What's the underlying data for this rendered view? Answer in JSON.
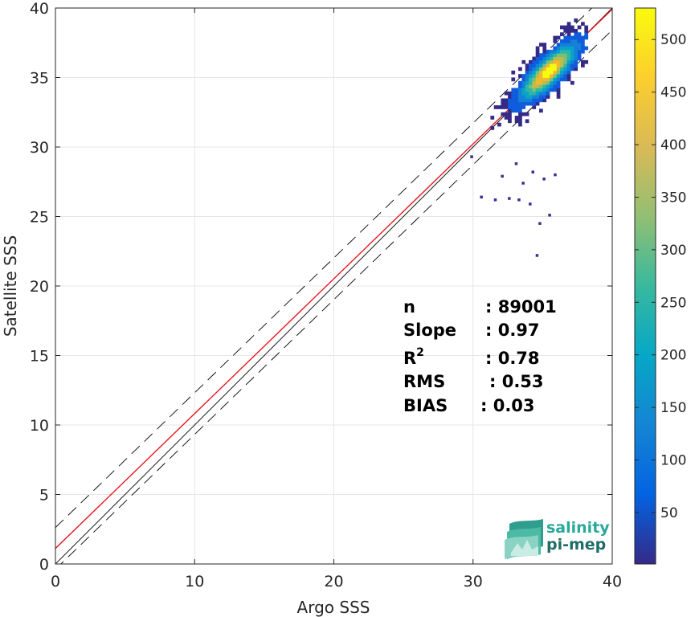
{
  "chart_data": {
    "type": "heatmap",
    "title": "",
    "xlabel": "Argo SSS",
    "ylabel": "Satellite SSS",
    "xlim": [
      0,
      40
    ],
    "ylim": [
      0,
      40
    ],
    "xticks": [
      0,
      10,
      20,
      30,
      40
    ],
    "yticks": [
      0,
      5,
      10,
      15,
      20,
      25,
      30,
      35,
      40
    ],
    "grid": true,
    "colorbar": {
      "range": [
        1,
        530
      ],
      "ticks": [
        50,
        100,
        150,
        200,
        250,
        300,
        350,
        400,
        450,
        500
      ],
      "colormap": "parula"
    },
    "density_cluster": {
      "center": [
        35.3,
        35.3
      ],
      "x_range": [
        29.5,
        38
      ],
      "y_range": [
        29.5,
        39.5
      ],
      "peak_count": 530
    },
    "outliers": [
      [
        30.5,
        26.5
      ],
      [
        31.5,
        26.3
      ],
      [
        32.5,
        26.4
      ],
      [
        33.2,
        26.3
      ],
      [
        34.0,
        26.0
      ],
      [
        35.0,
        27.8
      ],
      [
        35.4,
        25.2
      ],
      [
        34.7,
        24.6
      ],
      [
        34.5,
        22.3
      ],
      [
        33.5,
        27.5
      ],
      [
        32.0,
        28.0
      ],
      [
        29.8,
        29.4
      ],
      [
        34.2,
        28.3
      ],
      [
        33.0,
        28.9
      ],
      [
        35.8,
        28.1
      ]
    ],
    "lines": [
      {
        "name": "identity",
        "style": "solid",
        "color": "#000000",
        "slope": 1,
        "intercept": 0
      },
      {
        "name": "regression",
        "style": "solid",
        "color": "#e8141b",
        "slope": 0.97,
        "intercept": 1.12
      },
      {
        "name": "upper bound",
        "style": "dashed",
        "color": "#000000",
        "slope": 0.97,
        "intercept": 2.62
      },
      {
        "name": "lower bound",
        "style": "dashed",
        "color": "#000000",
        "slope": 0.97,
        "intercept": -0.38
      }
    ],
    "stats": [
      {
        "label": "n",
        "sup": "",
        "sep": ":",
        "value": "89001"
      },
      {
        "label": "Slope",
        "sup": "",
        "sep": ":",
        "value": "0.97"
      },
      {
        "label": "R",
        "sup": "2",
        "sep": ":",
        "value": "0.78"
      },
      {
        "label": "RMS",
        "sup": "",
        "sep": ":",
        "value": "0.53"
      },
      {
        "label": "BIAS",
        "sup": "",
        "sep": ":",
        "value": "0.03"
      }
    ]
  },
  "logo": {
    "line1": "salinity",
    "line2": "pi-mep",
    "color1": "#2aa89a",
    "color2": "#1f6d66"
  }
}
